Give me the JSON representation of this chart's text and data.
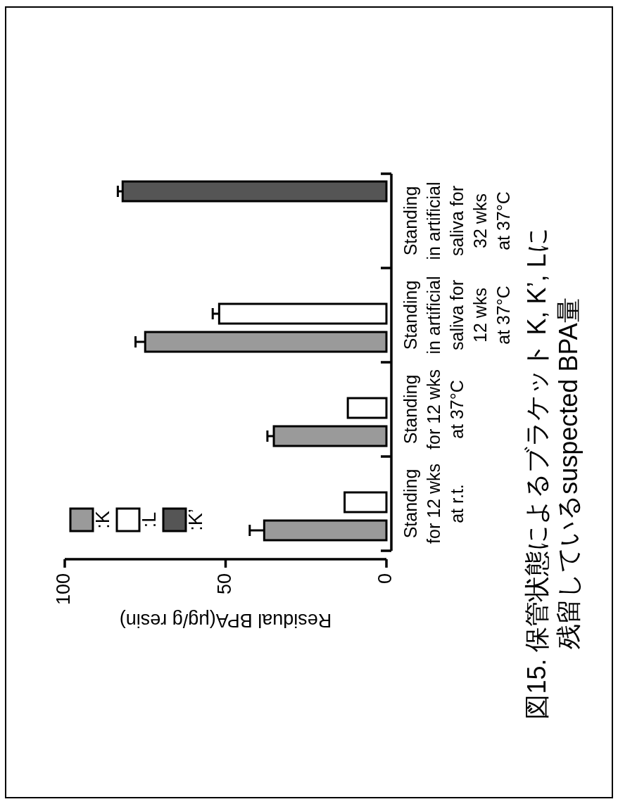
{
  "chart_data": {
    "type": "bar",
    "orientation": "horizontal",
    "title": "図15. 保管状態によるブラケット K, K’, Lに残留しているsuspected BPA量",
    "xlabel": "Residual BPA(μg/g resin)",
    "categories": [
      "Standing\nin artificial\nsaliva for\n32 wks\nat 37°C",
      "Standing\nin artificial\nsaliva for\n12 wks\nat 37°C",
      "Standing\nfor 12 wks\nat 37°C",
      "Standing\nfor 12 wks\nat r.t."
    ],
    "series": [
      {
        "name": ":K",
        "color": "#9a9a9a",
        "values": [
          null,
          75,
          35,
          38
        ],
        "errors": [
          null,
          [
            75,
            78
          ],
          [
            35,
            37
          ],
          [
            38,
            42.5
          ]
        ]
      },
      {
        "name": ":L",
        "color": "#ffffff",
        "values": [
          null,
          52,
          12,
          13
        ],
        "errors": [
          null,
          [
            52,
            54
          ],
          null,
          null
        ]
      },
      {
        "name": ":K’",
        "color": "#555555",
        "values": [
          82,
          null,
          null,
          null
        ],
        "errors": [
          [
            82,
            83.5
          ],
          null,
          null,
          null
        ]
      }
    ],
    "xlim": [
      100,
      0
    ],
    "xticks": [
      100,
      50,
      0
    ],
    "legend": "bottom left"
  }
}
